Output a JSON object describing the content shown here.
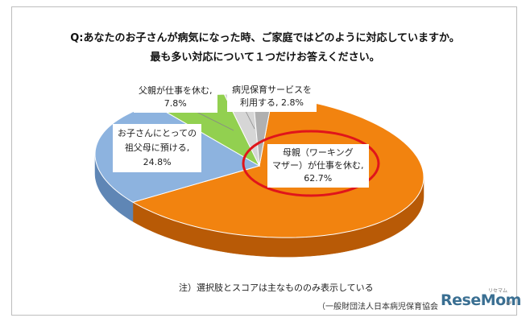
{
  "chart_data": {
    "type": "pie",
    "title": "Q:あなたのお子さんが病気になった時、ご家庭ではどのように対応していますか。",
    "subtitle": "最も多い対応について１つだけお答えください。",
    "slices": [
      {
        "label_lines": [
          "母親（ワーキング",
          "マザー）が仕事を休む,",
          "62.7%"
        ],
        "value": 62.7,
        "color": "#F2830F",
        "side": "#B85A06"
      },
      {
        "label_lines": [
          "お子さんにとっての",
          "祖父母に預ける,",
          "24.8%"
        ],
        "value": 24.8,
        "color": "#8DB3DF",
        "side": "#5F86B5"
      },
      {
        "label_lines": [
          "父親が仕事を休む,",
          "7.8%"
        ],
        "value": 7.8,
        "color": "#92D050",
        "side": "#5F9A2A"
      },
      {
        "label_lines": [
          "病児保育サービスを",
          "利用する, 2.8%"
        ],
        "value": 2.8,
        "color": "#D6D6D6",
        "side": "#A0A0A0"
      },
      {
        "value": 1.9,
        "color": "#B0B0B0",
        "side": "#808080"
      }
    ],
    "note": "注）選択肢とスコアは主なもののみ表示している",
    "source": "（一般財団法人日本病児保育協会"
  },
  "watermark": {
    "text": "ReseMom",
    "small": "リセマム"
  },
  "colors": {
    "highlight": "#E0151B"
  }
}
